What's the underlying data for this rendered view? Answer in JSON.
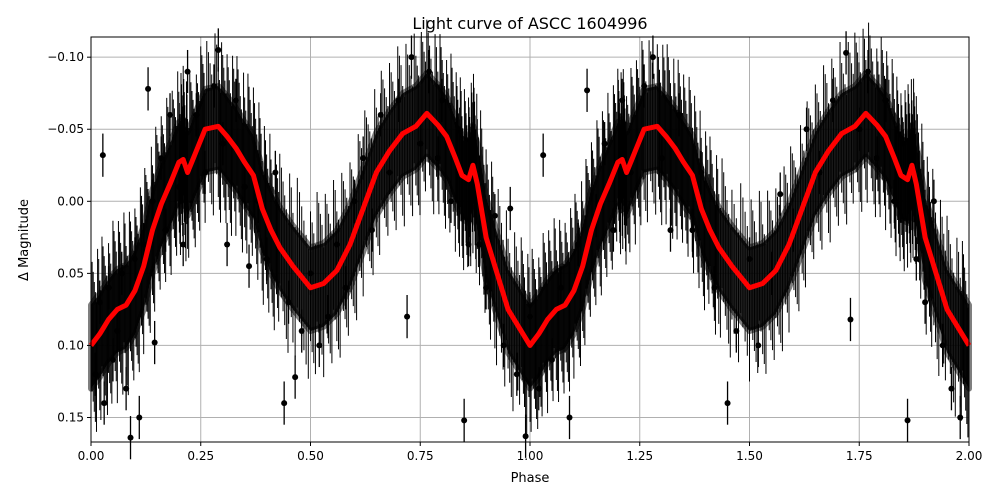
{
  "chart_data": {
    "type": "scatter",
    "title": "Light curve of ASCC 1604996",
    "xlabel": "Phase",
    "ylabel": "Δ Magnitude",
    "xlim": [
      0,
      2
    ],
    "ylim": [
      -0.114,
      0.167
    ],
    "y_inverted": true,
    "grid": true,
    "x_ticks": [
      "0.00",
      "0.25",
      "0.50",
      "0.75",
      "1.00",
      "1.25",
      "1.50",
      "1.75",
      "2.00"
    ],
    "x_tick_values": [
      0,
      0.25,
      0.5,
      0.75,
      1,
      1.25,
      1.5,
      1.75,
      2
    ],
    "y_ticks": [
      "−0.10",
      "−0.05",
      "0.00",
      "0.05",
      "0.10",
      "0.15"
    ],
    "y_tick_values": [
      -0.1,
      -0.05,
      0,
      0.05,
      0.1,
      0.15
    ],
    "colors": {
      "points": "#000000",
      "model": "#ff0000",
      "grid": "#b0b0b0"
    },
    "series": [
      {
        "kind": "errorbar-points",
        "typical_error": 0.015,
        "points": [
          [
            0.01,
            0.12
          ],
          [
            0.02,
            0.07
          ],
          [
            0.027,
            -0.032
          ],
          [
            0.03,
            0.14
          ],
          [
            0.04,
            0.06
          ],
          [
            0.05,
            0.11
          ],
          [
            0.06,
            0.09
          ],
          [
            0.07,
            0.05
          ],
          [
            0.08,
            0.13
          ],
          [
            0.09,
            0.164
          ],
          [
            0.1,
            0.04
          ],
          [
            0.11,
            0.15
          ],
          [
            0.12,
            0.03
          ],
          [
            0.13,
            -0.078
          ],
          [
            0.14,
            0.0
          ],
          [
            0.145,
            0.098
          ],
          [
            0.16,
            -0.03
          ],
          [
            0.17,
            0.02
          ],
          [
            0.18,
            -0.06
          ],
          [
            0.2,
            -0.01
          ],
          [
            0.21,
            0.03
          ],
          [
            0.22,
            -0.09
          ],
          [
            0.24,
            -0.06
          ],
          [
            0.26,
            -0.02
          ],
          [
            0.28,
            -0.08
          ],
          [
            0.29,
            -0.105
          ],
          [
            0.3,
            -0.04
          ],
          [
            0.31,
            0.03
          ],
          [
            0.33,
            -0.07
          ],
          [
            0.35,
            -0.01
          ],
          [
            0.36,
            0.045
          ],
          [
            0.38,
            0.0
          ],
          [
            0.4,
            0.04
          ],
          [
            0.42,
            -0.02
          ],
          [
            0.44,
            0.14
          ],
          [
            0.45,
            0.07
          ],
          [
            0.465,
            0.122
          ],
          [
            0.48,
            0.09
          ],
          [
            0.5,
            0.05
          ],
          [
            0.52,
            0.1
          ],
          [
            0.54,
            0.08
          ],
          [
            0.56,
            0.03
          ],
          [
            0.58,
            0.06
          ],
          [
            0.6,
            0.0
          ],
          [
            0.62,
            -0.03
          ],
          [
            0.64,
            0.02
          ],
          [
            0.66,
            -0.06
          ],
          [
            0.68,
            -0.02
          ],
          [
            0.7,
            -0.07
          ],
          [
            0.72,
            0.08
          ],
          [
            0.73,
            -0.1
          ],
          [
            0.75,
            -0.04
          ],
          [
            0.77,
            -0.09
          ],
          [
            0.79,
            -0.03
          ],
          [
            0.8,
            -0.07
          ],
          [
            0.82,
            0.0
          ],
          [
            0.84,
            -0.05
          ],
          [
            0.85,
            0.152
          ],
          [
            0.86,
            0.03
          ],
          [
            0.885,
            0.03
          ],
          [
            0.9,
            0.06
          ],
          [
            0.92,
            0.01
          ],
          [
            0.94,
            0.1
          ],
          [
            0.955,
            0.005
          ],
          [
            0.97,
            0.12
          ],
          [
            0.99,
            0.163
          ],
          [
            1.0,
            0.08
          ],
          [
            1.02,
            0.13
          ],
          [
            1.03,
            -0.032
          ],
          [
            1.05,
            0.11
          ],
          [
            1.07,
            0.06
          ],
          [
            1.09,
            0.15
          ],
          [
            1.11,
            0.03
          ],
          [
            1.13,
            -0.077
          ],
          [
            1.15,
            0.01
          ],
          [
            1.17,
            -0.04
          ],
          [
            1.19,
            0.02
          ],
          [
            1.21,
            -0.07
          ],
          [
            1.23,
            -0.02
          ],
          [
            1.26,
            -0.08
          ],
          [
            1.28,
            -0.1
          ],
          [
            1.3,
            -0.03
          ],
          [
            1.32,
            0.02
          ],
          [
            1.34,
            -0.06
          ],
          [
            1.37,
            0.02
          ],
          [
            1.39,
            -0.02
          ],
          [
            1.42,
            0.06
          ],
          [
            1.45,
            0.14
          ],
          [
            1.47,
            0.09
          ],
          [
            1.5,
            0.04
          ],
          [
            1.52,
            0.1
          ],
          [
            1.55,
            0.05
          ],
          [
            1.57,
            -0.005
          ],
          [
            1.6,
            0.02
          ],
          [
            1.63,
            -0.05
          ],
          [
            1.66,
            -0.02
          ],
          [
            1.69,
            -0.07
          ],
          [
            1.72,
            -0.103
          ],
          [
            1.73,
            0.082
          ],
          [
            1.75,
            -0.05
          ],
          [
            1.77,
            -0.09
          ],
          [
            1.79,
            -0.03
          ],
          [
            1.81,
            -0.07
          ],
          [
            1.83,
            0.0
          ],
          [
            1.85,
            -0.04
          ],
          [
            1.86,
            0.152
          ],
          [
            1.88,
            0.04
          ],
          [
            1.9,
            0.07
          ],
          [
            1.92,
            0.0
          ],
          [
            1.94,
            0.1
          ],
          [
            1.96,
            0.13
          ],
          [
            1.98,
            0.15
          ]
        ]
      },
      {
        "kind": "model-line",
        "x": [
          0,
          0.02,
          0.04,
          0.06,
          0.08,
          0.1,
          0.12,
          0.14,
          0.16,
          0.18,
          0.2,
          0.21,
          0.22,
          0.24,
          0.26,
          0.29,
          0.31,
          0.33,
          0.35,
          0.37,
          0.39,
          0.41,
          0.43,
          0.46,
          0.5,
          0.53,
          0.56,
          0.59,
          0.62,
          0.65,
          0.68,
          0.71,
          0.74,
          0.765,
          0.79,
          0.81,
          0.83,
          0.845,
          0.86,
          0.87,
          0.88,
          0.9,
          0.92,
          0.95,
          0.98,
          1.0
        ],
        "y": [
          0.1,
          0.092,
          0.082,
          0.075,
          0.072,
          0.062,
          0.045,
          0.02,
          0.002,
          -0.012,
          -0.027,
          -0.029,
          -0.02,
          -0.035,
          -0.05,
          -0.052,
          -0.045,
          -0.037,
          -0.027,
          -0.018,
          0.005,
          0.02,
          0.032,
          0.045,
          0.06,
          0.057,
          0.048,
          0.03,
          0.005,
          -0.02,
          -0.035,
          -0.047,
          -0.052,
          -0.061,
          -0.053,
          -0.045,
          -0.03,
          -0.018,
          -0.015,
          -0.025,
          -0.012,
          0.025,
          0.045,
          0.075,
          0.09,
          0.1
        ],
        "repeats_with_period": 1
      }
    ]
  }
}
